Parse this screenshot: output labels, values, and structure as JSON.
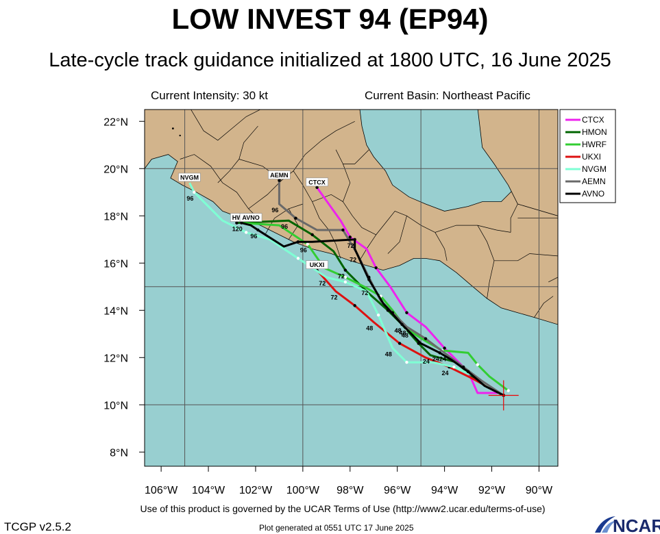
{
  "header": {
    "title": "LOW INVEST 94 (EP94)",
    "subtitle": "Late-cycle track guidance initialized at 1800 UTC, 16 June 2025",
    "intensity": "Current Intensity: 30 kt",
    "basin": "Current Basin: Northeast Pacific"
  },
  "footer": {
    "terms": "Use of this product is governed by the UCAR Terms of Use (http://www2.ucar.edu/terms-of-use)",
    "version": "TCGP v2.5.2",
    "generated": "Plot generated at 0551 UTC   17 June 2025",
    "logo": "NCAR"
  },
  "map": {
    "lon_range": [
      -106.7,
      -89.2
    ],
    "lat_range": [
      7.4,
      22.5
    ],
    "lon_ticks": [
      -106,
      -104,
      -102,
      -100,
      -98,
      -96,
      -94,
      -92,
      -90
    ],
    "lon_tick_labels": [
      "106°W",
      "104°W",
      "102°W",
      "100°W",
      "98°W",
      "96°W",
      "94°W",
      "92°W",
      "90°W"
    ],
    "lat_ticks": [
      8,
      10,
      12,
      14,
      16,
      18,
      20,
      22
    ],
    "lat_tick_labels": [
      "8°N",
      "10°N",
      "12°N",
      "14°N",
      "16°N",
      "18°N",
      "20°N",
      "22°N"
    ],
    "grid_lons": [
      -105,
      -100,
      -95,
      -90
    ],
    "grid_lats": [
      10,
      15,
      20
    ],
    "ocean_color": "#98cfd0",
    "land_color": "#d2b48c",
    "current_position": {
      "lon": -91.5,
      "lat": 10.4
    }
  },
  "legend": {
    "placement": "top-right, outside plot",
    "items": [
      {
        "name": "CTCX",
        "color": "#ee22ee"
      },
      {
        "name": "HMON",
        "color": "#006400"
      },
      {
        "name": "HWRF",
        "color": "#32cd32"
      },
      {
        "name": "UKXI",
        "color": "#dd1111"
      },
      {
        "name": "NVGM",
        "color": "#7fffd4"
      },
      {
        "name": "AEMN",
        "color": "#696969"
      },
      {
        "name": "AVNO",
        "color": "#000000"
      }
    ]
  },
  "tracks": [
    {
      "name": "CTCX",
      "color": "#ee22ee",
      "points": [
        [
          -91.7,
          10.5
        ],
        [
          -92.6,
          10.5
        ],
        [
          -93.0,
          11.4
        ],
        [
          -93.5,
          11.9
        ],
        [
          -94.0,
          12.4
        ],
        [
          -94.8,
          13.3
        ],
        [
          -95.6,
          13.9
        ],
        [
          -96.3,
          15.0
        ],
        [
          -96.9,
          15.8
        ],
        [
          -97.3,
          16.6
        ],
        [
          -98.0,
          17.1
        ],
        [
          -98.4,
          17.8
        ],
        [
          -99.4,
          19.2
        ]
      ],
      "labels": [],
      "end_label": "CTCX",
      "end_label_pos": [
        -99.4,
        19.2
      ]
    },
    {
      "name": "HMON",
      "color": "#006400",
      "points": [
        [
          -91.5,
          10.4
        ],
        [
          -92.6,
          11.0
        ],
        [
          -93.5,
          11.8
        ],
        [
          -94.6,
          12.1
        ],
        [
          -95.1,
          12.6
        ],
        [
          -95.8,
          13.4
        ],
        [
          -96.4,
          14.0
        ],
        [
          -97.3,
          14.8
        ],
        [
          -98.2,
          15.7
        ],
        [
          -98.7,
          16.5
        ],
        [
          -99.6,
          17.2
        ],
        [
          -100.6,
          17.8
        ],
        [
          -102.8,
          17.7
        ]
      ],
      "labels": [
        {
          "text": "24",
          "at": [
            -94.6,
            12.1
          ]
        },
        {
          "text": "48",
          "at": [
            -95.8,
            13.4
          ]
        },
        {
          "text": "72",
          "at": [
            -98.2,
            15.7
          ]
        },
        {
          "text": "96",
          "at": [
            -100.6,
            17.8
          ]
        }
      ],
      "end_label": "",
      "end_label_pos": []
    },
    {
      "name": "HWRF",
      "color": "#32cd32",
      "points": [
        [
          -91.3,
          10.6
        ],
        [
          -92.1,
          11.2
        ],
        [
          -92.6,
          11.7
        ],
        [
          -93.0,
          12.2
        ],
        [
          -94.1,
          12.3
        ],
        [
          -94.8,
          12.7
        ],
        [
          -95.6,
          13.2
        ],
        [
          -96.2,
          14.0
        ],
        [
          -96.7,
          14.6
        ],
        [
          -97.4,
          15.0
        ],
        [
          -98.2,
          15.4
        ],
        [
          -99.1,
          15.8
        ],
        [
          -99.8,
          16.8
        ],
        [
          -101.0,
          17.6
        ],
        [
          -102.6,
          17.7
        ]
      ],
      "labels": [
        {
          "text": "24",
          "at": [
            -93.9,
            12.2
          ]
        },
        {
          "text": "48",
          "at": [
            -95.5,
            13.2
          ]
        },
        {
          "text": "72",
          "at": [
            -97.2,
            15.0
          ]
        },
        {
          "text": "96",
          "at": [
            -99.8,
            16.8
          ]
        },
        {
          "text": "120",
          "at": [
            -102.6,
            17.7
          ]
        }
      ],
      "end_label": "HWRF",
      "end_label_pos": [
        -102.6,
        17.7
      ]
    },
    {
      "name": "UKXI",
      "color": "#dd1111",
      "points": [
        [
          -91.5,
          10.4
        ],
        [
          -92.8,
          11.1
        ],
        [
          -93.8,
          11.6
        ],
        [
          -94.8,
          12.0
        ],
        [
          -95.9,
          12.6
        ],
        [
          -97.0,
          13.5
        ],
        [
          -97.8,
          14.2
        ],
        [
          -98.6,
          14.8
        ],
        [
          -99.4,
          15.7
        ]
      ],
      "labels": [
        {
          "text": "24",
          "at": [
            -93.8,
            11.6
          ]
        },
        {
          "text": "48",
          "at": [
            -97.0,
            13.5
          ]
        },
        {
          "text": "72",
          "at": [
            -98.5,
            14.8
          ]
        }
      ],
      "end_label": "UKXI",
      "end_label_pos": [
        -99.4,
        15.7
      ]
    },
    {
      "name": "NVGM",
      "color": "#7fffd4",
      "points": [
        [
          -91.7,
          10.5
        ],
        [
          -92.7,
          11.2
        ],
        [
          -93.6,
          11.6
        ],
        [
          -94.5,
          11.8
        ],
        [
          -95.6,
          11.8
        ],
        [
          -96.2,
          12.4
        ],
        [
          -96.8,
          13.8
        ],
        [
          -97.3,
          14.8
        ],
        [
          -98.2,
          15.2
        ],
        [
          -99.0,
          15.4
        ],
        [
          -100.2,
          16.2
        ],
        [
          -101.4,
          17.0
        ],
        [
          -102.4,
          17.3
        ],
        [
          -103.4,
          17.8
        ],
        [
          -104.6,
          19.0
        ],
        [
          -104.8,
          19.4
        ]
      ],
      "labels": [
        {
          "text": "48",
          "at": [
            -96.2,
            12.4
          ]
        },
        {
          "text": "72",
          "at": [
            -99.0,
            15.4
          ]
        },
        {
          "text": "96",
          "at": [
            -104.6,
            19.0
          ]
        }
      ],
      "end_label": "NVGM",
      "end_label_pos": [
        -104.8,
        19.4
      ]
    },
    {
      "name": "AEMN",
      "color": "#696969",
      "points": [
        [
          -91.5,
          10.4
        ],
        [
          -92.4,
          11.0
        ],
        [
          -93.2,
          11.6
        ],
        [
          -94.0,
          12.2
        ],
        [
          -94.8,
          12.8
        ],
        [
          -95.6,
          13.3
        ],
        [
          -96.2,
          13.9
        ],
        [
          -96.7,
          14.4
        ],
        [
          -97.2,
          15.4
        ],
        [
          -97.7,
          16.4
        ],
        [
          -98.3,
          17.4
        ],
        [
          -99.4,
          17.4
        ],
        [
          -100.3,
          17.9
        ],
        [
          -101.0,
          18.5
        ],
        [
          -101.0,
          19.5
        ]
      ],
      "labels": [
        {
          "text": "48",
          "at": [
            -95.6,
            13.3
          ]
        },
        {
          "text": "72",
          "at": [
            -97.7,
            16.4
          ]
        },
        {
          "text": "96",
          "at": [
            -101.0,
            18.5
          ]
        }
      ],
      "end_label": "AEMN",
      "end_label_pos": [
        -101.0,
        19.5
      ]
    },
    {
      "name": "AVNO",
      "color": "#000000",
      "points": [
        [
          -91.5,
          10.4
        ],
        [
          -92.3,
          10.8
        ],
        [
          -93.0,
          11.4
        ],
        [
          -93.7,
          11.9
        ],
        [
          -94.2,
          12.2
        ],
        [
          -95.0,
          12.6
        ],
        [
          -95.8,
          13.4
        ],
        [
          -96.6,
          14.3
        ],
        [
          -97.2,
          15.3
        ],
        [
          -97.8,
          16.6
        ],
        [
          -97.8,
          17.0
        ],
        [
          -99.6,
          16.9
        ],
        [
          -100.2,
          16.9
        ],
        [
          -100.8,
          16.7
        ],
        [
          -101.9,
          17.4
        ],
        [
          -102.2,
          17.6
        ],
        [
          -102.6,
          17.7
        ]
      ],
      "labels": [
        {
          "text": "24",
          "at": [
            -94.2,
            12.2
          ]
        },
        {
          "text": "48",
          "at": [
            -95.8,
            13.4
          ]
        },
        {
          "text": "72",
          "at": [
            -97.8,
            17.0
          ]
        },
        {
          "text": "96",
          "at": [
            -101.9,
            17.4
          ]
        }
      ],
      "end_label": "AVNO",
      "end_label_pos": [
        -102.2,
        17.7
      ]
    }
  ]
}
